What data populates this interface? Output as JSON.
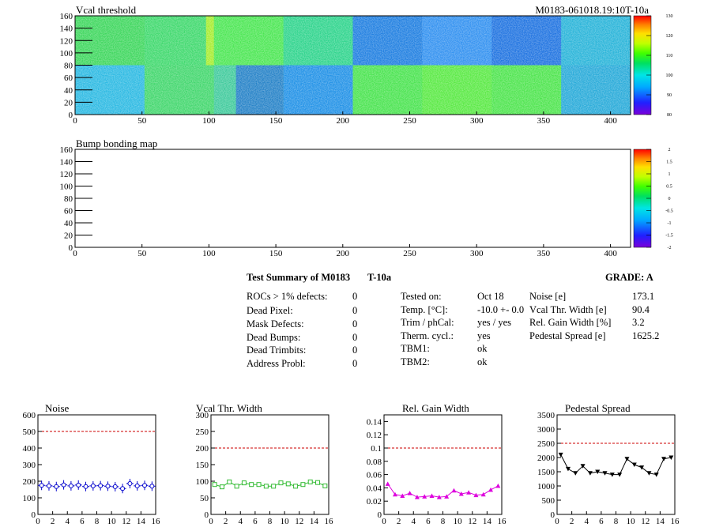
{
  "vcal_map": {
    "title": "Vcal threshold",
    "module_label": "M0183-061018.19:10T-10a",
    "x_ticks": [
      "0",
      "50",
      "100",
      "150",
      "200",
      "250",
      "300",
      "350",
      "400"
    ],
    "y_ticks": [
      "0",
      "20",
      "40",
      "60",
      "80",
      "100",
      "120",
      "140",
      "160"
    ],
    "colorbar_ticks": [
      "130",
      "120",
      "110",
      "100",
      "90",
      "80"
    ]
  },
  "bump_map": {
    "title": "Bump bonding map",
    "x_ticks": [
      "0",
      "50",
      "100",
      "150",
      "200",
      "250",
      "300",
      "350",
      "400"
    ],
    "y_ticks": [
      "0",
      "20",
      "40",
      "60",
      "80",
      "100",
      "120",
      "140",
      "160"
    ],
    "colorbar_ticks": [
      "2",
      "1.5",
      "1",
      "0.5",
      "0",
      "-0.5",
      "-1",
      "-1.5",
      "-2"
    ]
  },
  "summary": {
    "title": "Test Summary of M0183",
    "temp_tag": "T-10a",
    "grade": "GRADE:  A",
    "defects": [
      {
        "label": "ROCs > 1% defects:",
        "value": "0"
      },
      {
        "label": "Dead Pixel:",
        "value": "0"
      },
      {
        "label": "Mask Defects:",
        "value": "0"
      },
      {
        "label": "Dead Bumps:",
        "value": "0"
      },
      {
        "label": "Dead Trimbits:",
        "value": "0"
      },
      {
        "label": "Address Probl:",
        "value": "0"
      }
    ],
    "conditions": [
      {
        "label": "Tested on:",
        "value": "Oct 18"
      },
      {
        "label": "Temp. [°C]:",
        "value": "-10.0 +- 0.0"
      },
      {
        "label": "Trim / phCal:",
        "value": "yes / yes"
      },
      {
        "label": "Therm. cycl.:",
        "value": "yes"
      },
      {
        "label": "TBM1:",
        "value": "ok"
      },
      {
        "label": "TBM2:",
        "value": "ok"
      }
    ],
    "results": [
      {
        "label": "Noise [e]",
        "value": "173.1"
      },
      {
        "label": "Vcal Thr. Width [e]",
        "value": "90.4"
      },
      {
        "label": "Rel. Gain Width [%]",
        "value": "3.2"
      },
      {
        "label": "Pedestal Spread [e]",
        "value": "1625.2"
      }
    ]
  },
  "chart_data": [
    {
      "type": "scatter",
      "title": "Noise",
      "x": [
        0.5,
        1.5,
        2.5,
        3.5,
        4.5,
        5.5,
        6.5,
        7.5,
        8.5,
        9.5,
        10.5,
        11.5,
        12.5,
        13.5,
        14.5,
        15.5
      ],
      "values": [
        175,
        172,
        168,
        178,
        172,
        177,
        168,
        172,
        173,
        170,
        167,
        156,
        186,
        172,
        175,
        170
      ],
      "xlim": [
        0,
        16
      ],
      "ylim": [
        0,
        600
      ],
      "threshold": 500,
      "x_ticks": [
        "0",
        "2",
        "4",
        "6",
        "8",
        "10",
        "12",
        "14",
        "16"
      ],
      "y_ticks": [
        "0",
        "100",
        "200",
        "300",
        "400",
        "500",
        "600"
      ],
      "color": "#0000cc"
    },
    {
      "type": "line",
      "title": "Vcal Thr. Width",
      "x": [
        0.5,
        1.5,
        2.5,
        3.5,
        4.5,
        5.5,
        6.5,
        7.5,
        8.5,
        9.5,
        10.5,
        11.5,
        12.5,
        13.5,
        14.5,
        15.5
      ],
      "values": [
        90,
        83,
        98,
        85,
        95,
        90,
        90,
        85,
        85,
        95,
        92,
        85,
        90,
        98,
        96,
        86
      ],
      "xlim": [
        0,
        16
      ],
      "ylim": [
        0,
        300
      ],
      "threshold": 200,
      "x_ticks": [
        "0",
        "2",
        "4",
        "6",
        "8",
        "10",
        "12",
        "14",
        "16"
      ],
      "y_ticks": [
        "0",
        "50",
        "100",
        "150",
        "200",
        "250",
        "300"
      ],
      "color": "#33bb33"
    },
    {
      "type": "line",
      "title": "Rel. Gain Width",
      "x": [
        0.5,
        1.5,
        2.5,
        3.5,
        4.5,
        5.5,
        6.5,
        7.5,
        8.5,
        9.5,
        10.5,
        11.5,
        12.5,
        13.5,
        14.5,
        15.5
      ],
      "values": [
        0.046,
        0.03,
        0.028,
        0.032,
        0.026,
        0.027,
        0.028,
        0.026,
        0.027,
        0.036,
        0.031,
        0.033,
        0.029,
        0.03,
        0.037,
        0.043
      ],
      "xlim": [
        0,
        16
      ],
      "ylim": [
        0,
        0.15
      ],
      "threshold": 0.1,
      "x_ticks": [
        "0",
        "2",
        "4",
        "6",
        "8",
        "10",
        "12",
        "14",
        "16"
      ],
      "y_ticks": [
        "0",
        "0.02",
        "0.04",
        "0.06",
        "0.08",
        "0.1",
        "0.12",
        "0.14"
      ],
      "color": "#dd00dd"
    },
    {
      "type": "line",
      "title": "Pedestal Spread",
      "x": [
        0.5,
        1.5,
        2.5,
        3.5,
        4.5,
        5.5,
        6.5,
        7.5,
        8.5,
        9.5,
        10.5,
        11.5,
        12.5,
        13.5,
        14.5,
        15.5
      ],
      "values": [
        2100,
        1600,
        1450,
        1700,
        1450,
        1500,
        1450,
        1400,
        1400,
        1950,
        1750,
        1650,
        1450,
        1400,
        1950,
        2000
      ],
      "xlim": [
        0,
        16
      ],
      "ylim": [
        0,
        3500
      ],
      "threshold": 2500,
      "x_ticks": [
        "0",
        "2",
        "4",
        "6",
        "8",
        "10",
        "12",
        "14",
        "16"
      ],
      "y_ticks": [
        "0",
        "500",
        "1000",
        "1500",
        "2000",
        "2500",
        "3000",
        "3500"
      ],
      "color": "#000000"
    }
  ]
}
